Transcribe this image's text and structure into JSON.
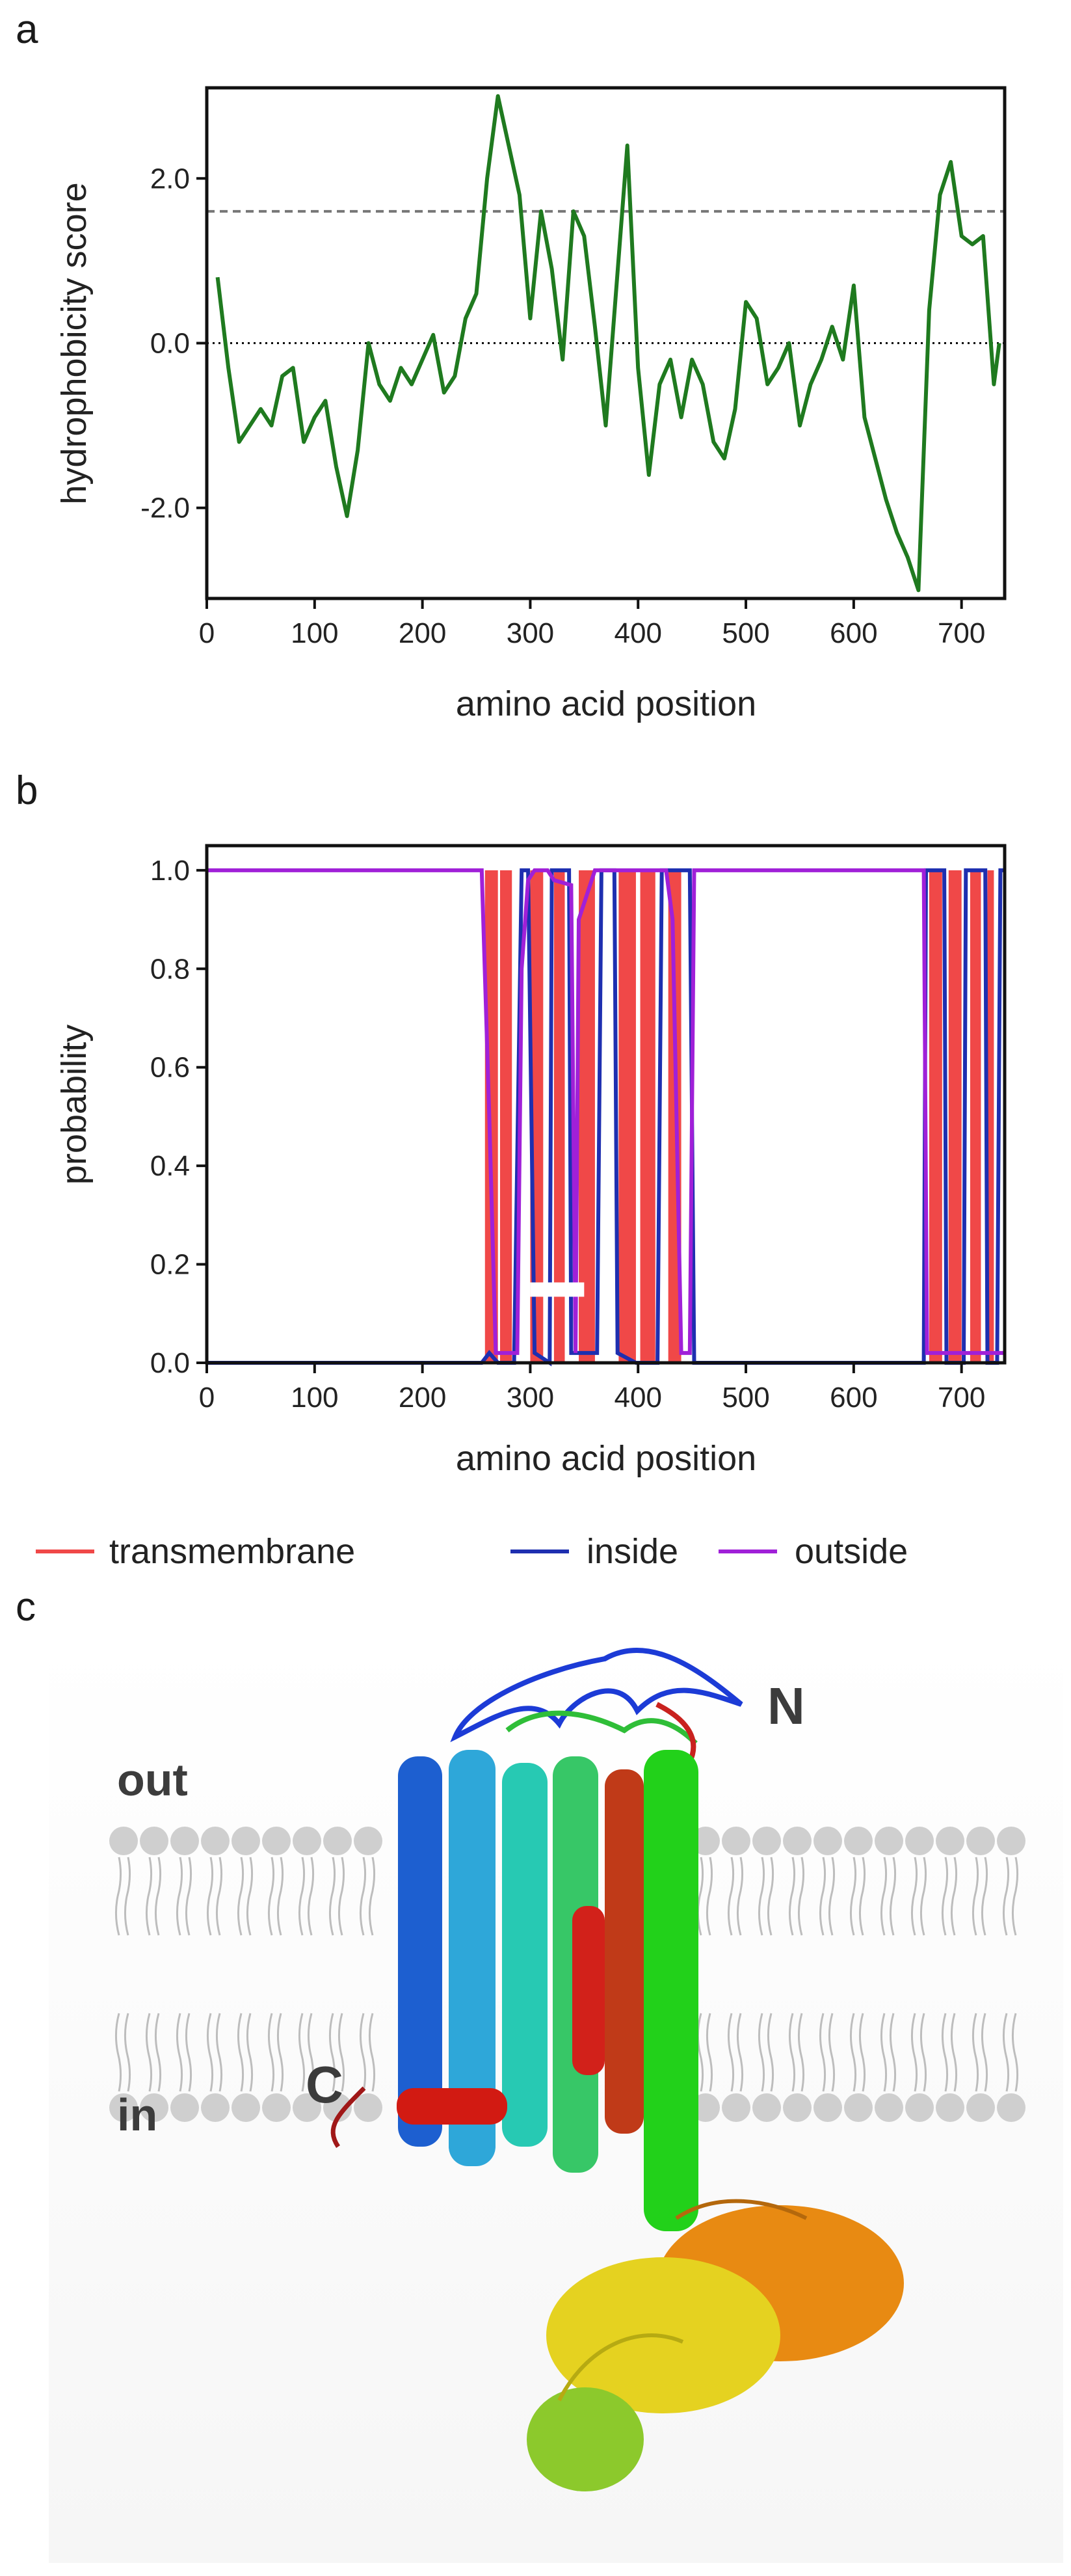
{
  "panels": {
    "a": "a",
    "b": "b",
    "c": "c"
  },
  "chart_data": [
    {
      "type": "line",
      "xlabel": "amino acid position",
      "ylabel": "hydrophobicity score",
      "xlim": [
        0,
        740
      ],
      "ylim": [
        -3.1,
        3.1
      ],
      "xticks": [
        "0",
        "100",
        "200",
        "300",
        "400",
        "500",
        "600",
        "700"
      ],
      "yticks": [
        "2.0",
        "0.0",
        "-2.0"
      ],
      "threshold": 1.6,
      "colors": {
        "line": "#1f7a1f",
        "threshold": "#777777",
        "zero": "#000000"
      },
      "x": [
        10,
        20,
        30,
        40,
        50,
        60,
        70,
        80,
        90,
        100,
        110,
        120,
        130,
        140,
        150,
        160,
        170,
        180,
        190,
        200,
        210,
        220,
        230,
        240,
        250,
        260,
        270,
        280,
        290,
        300,
        310,
        320,
        330,
        340,
        350,
        360,
        370,
        380,
        390,
        400,
        410,
        420,
        430,
        440,
        450,
        460,
        470,
        480,
        490,
        500,
        510,
        520,
        530,
        540,
        550,
        560,
        570,
        580,
        590,
        600,
        610,
        620,
        630,
        640,
        650,
        660,
        670,
        680,
        690,
        700,
        710,
        720,
        730,
        735
      ],
      "y": [
        0.8,
        -0.3,
        -1.2,
        -1.0,
        -0.8,
        -1.0,
        -0.4,
        -0.3,
        -1.2,
        -0.9,
        -0.7,
        -1.5,
        -2.1,
        -1.3,
        0.0,
        -0.5,
        -0.7,
        -0.3,
        -0.5,
        -0.2,
        0.1,
        -0.6,
        -0.4,
        0.3,
        0.6,
        2.0,
        3.0,
        2.4,
        1.8,
        0.3,
        1.6,
        0.9,
        -0.2,
        1.6,
        1.3,
        0.2,
        -1.0,
        0.7,
        2.4,
        -0.3,
        -1.6,
        -0.5,
        -0.2,
        -0.9,
        -0.2,
        -0.5,
        -1.2,
        -1.4,
        -0.8,
        0.5,
        0.3,
        -0.5,
        -0.3,
        0.0,
        -1.0,
        -0.5,
        -0.2,
        0.2,
        -0.2,
        0.7,
        -0.9,
        -1.4,
        -1.9,
        -2.3,
        -2.6,
        -3.0,
        0.4,
        1.8,
        2.2,
        1.3,
        1.2,
        1.3,
        -0.5,
        0.0
      ]
    },
    {
      "type": "line",
      "xlabel": "amino acid position",
      "ylabel": "probability",
      "xlim": [
        0,
        740
      ],
      "ylim": [
        0,
        1.05
      ],
      "xticks": [
        "0",
        "100",
        "200",
        "300",
        "400",
        "500",
        "600",
        "700"
      ],
      "yticks": [
        "0.0",
        "0.2",
        "0.4",
        "0.6",
        "0.8",
        "1.0"
      ],
      "colors": {
        "transmembrane": "#f04848",
        "inside": "#1e2fb0",
        "outside": "#a020d8"
      },
      "tm_segments": [
        [
          258,
          270
        ],
        [
          272,
          283
        ],
        [
          300,
          312
        ],
        [
          322,
          332
        ],
        [
          345,
          360
        ],
        [
          382,
          398
        ],
        [
          402,
          416
        ],
        [
          428,
          440
        ],
        [
          670,
          682
        ],
        [
          688,
          700
        ],
        [
          708,
          718
        ],
        [
          724,
          730
        ]
      ],
      "series": [
        {
          "name": "transmembrane"
        },
        {
          "name": "inside"
        },
        {
          "name": "outside"
        }
      ]
    }
  ],
  "legend": [
    {
      "label": "transmembrane",
      "color": "#f04848"
    },
    {
      "label": "inside",
      "color": "#1e2fb0"
    },
    {
      "label": "outside",
      "color": "#a020d8"
    }
  ],
  "structure": {
    "out_label": "out",
    "in_label": "in",
    "n_label": "N",
    "c_label": "C"
  }
}
